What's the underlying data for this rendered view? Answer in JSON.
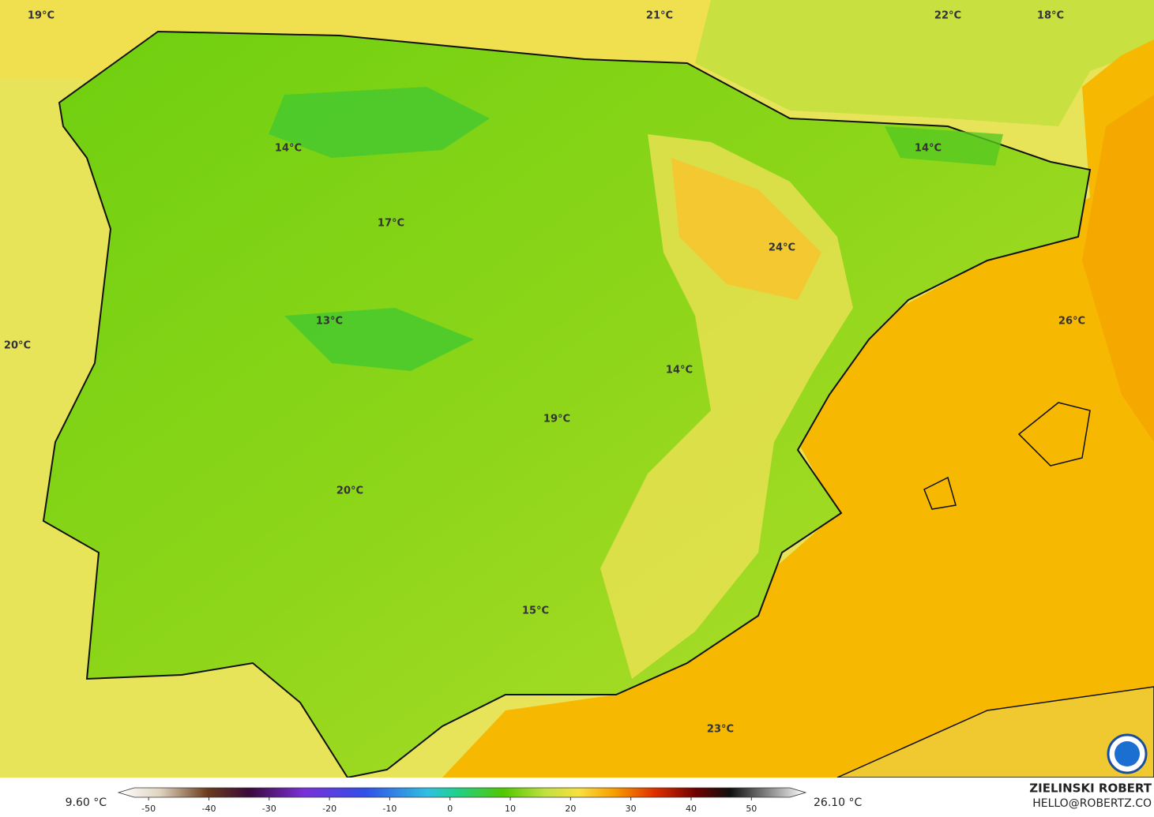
{
  "map": {
    "labels": [
      "19°C",
      "21°C",
      "22°C",
      "18°C",
      "14°C",
      "14°C",
      "17°C",
      "24°C",
      "26°C",
      "13°C",
      "20°C",
      "14°C",
      "19°C",
      "20°C",
      "15°C",
      "23°C"
    ]
  },
  "colorbar": {
    "min_label": "9.60 °C",
    "max_label": "26.10 °C",
    "lim": [
      -55,
      59
    ],
    "ticks": [
      -50,
      -40,
      -30,
      -20,
      -10,
      0,
      10,
      20,
      30,
      40,
      50
    ]
  },
  "credit": {
    "name": "ZIELINSKI ROBERT",
    "email": "HELLO@ROBERTZ.CO"
  }
}
